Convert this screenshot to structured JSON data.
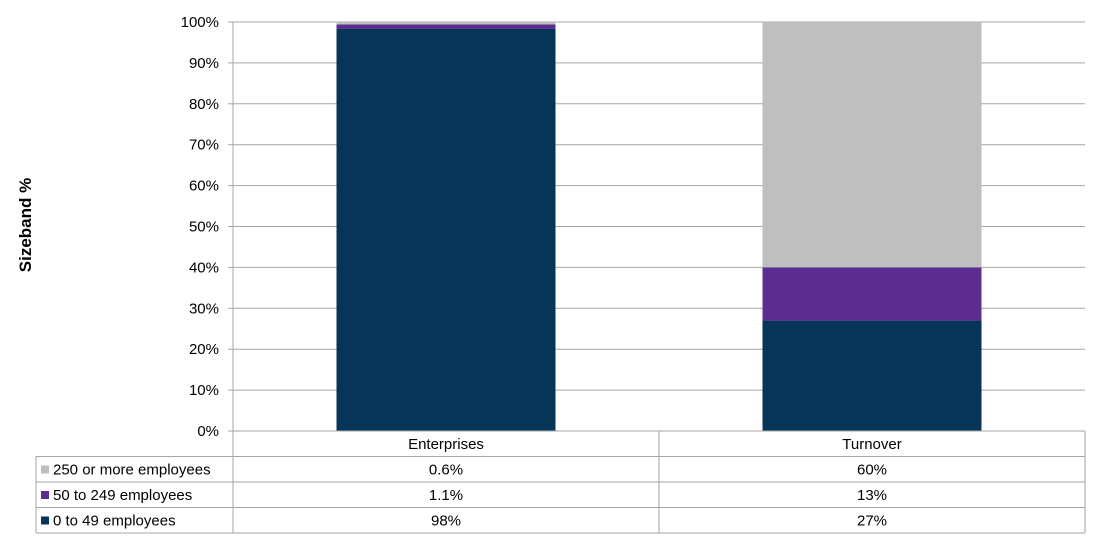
{
  "chart_data": {
    "type": "bar",
    "stacked": true,
    "categories": [
      "Enterprises",
      "Turnover"
    ],
    "ylabel": "Sizeband %",
    "ylim": [
      0,
      100
    ],
    "yticks": [
      "0%",
      "10%",
      "20%",
      "30%",
      "40%",
      "50%",
      "60%",
      "70%",
      "80%",
      "90%",
      "100%"
    ],
    "grid": true,
    "legend": "data-table",
    "series": [
      {
        "name": "0 to 49 employees",
        "color": "#063557",
        "values": [
          98.3,
          27
        ],
        "labels": [
          "98%",
          "27%"
        ]
      },
      {
        "name": "50 to 249 employees",
        "color": "#5C2D91",
        "values": [
          1.1,
          13
        ],
        "labels": [
          "1.1%",
          "13%"
        ]
      },
      {
        "name": "250 or more employees",
        "color": "#BFBFBF",
        "values": [
          0.6,
          60
        ],
        "labels": [
          "0.6%",
          "60%"
        ]
      }
    ]
  }
}
